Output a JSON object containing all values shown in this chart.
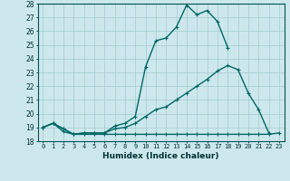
{
  "xlabel": "Humidex (Indice chaleur)",
  "ylabel": "",
  "background_color": "#cde8ec",
  "grid_color": "#a8cfd4",
  "line_color": "#006868",
  "xlim": [
    -0.5,
    23.5
  ],
  "ylim": [
    18,
    28
  ],
  "yticks": [
    18,
    19,
    20,
    21,
    22,
    23,
    24,
    25,
    26,
    27,
    28
  ],
  "xticks": [
    0,
    1,
    2,
    3,
    4,
    5,
    6,
    7,
    8,
    9,
    10,
    11,
    12,
    13,
    14,
    15,
    16,
    17,
    18,
    19,
    20,
    21,
    22,
    23
  ],
  "curve1_x": [
    0,
    1,
    2,
    3,
    4,
    5,
    6,
    7,
    8,
    9,
    10,
    11,
    12,
    13,
    14,
    15,
    16,
    17,
    18,
    19,
    20,
    21,
    22,
    23
  ],
  "curve1_y": [
    19.0,
    19.3,
    18.7,
    18.5,
    18.5,
    18.5,
    18.5,
    18.5,
    18.5,
    18.5,
    18.5,
    18.5,
    18.5,
    18.5,
    18.5,
    18.5,
    18.5,
    18.5,
    18.5,
    18.5,
    18.5,
    18.5,
    18.5,
    18.6
  ],
  "curve2_x": [
    0,
    1,
    2,
    3,
    4,
    5,
    6,
    7,
    8,
    9,
    10,
    11,
    12,
    13,
    14,
    15,
    16,
    17,
    18,
    19,
    20,
    21,
    22,
    23
  ],
  "curve2_y": [
    19.0,
    19.3,
    18.9,
    18.5,
    18.6,
    18.6,
    18.6,
    18.9,
    19.0,
    19.3,
    19.8,
    20.3,
    20.5,
    21.0,
    21.5,
    22.0,
    22.5,
    23.1,
    23.5,
    23.2,
    21.5,
    20.3,
    18.6,
    null
  ],
  "curve3_x": [
    0,
    1,
    2,
    3,
    4,
    5,
    6,
    7,
    8,
    9,
    10,
    11,
    12,
    13,
    14,
    15,
    16,
    17,
    18
  ],
  "curve3_y": [
    19.0,
    19.3,
    18.9,
    18.5,
    18.6,
    18.6,
    18.6,
    19.1,
    19.3,
    19.8,
    23.4,
    25.3,
    25.5,
    26.3,
    27.9,
    27.2,
    27.5,
    26.7,
    24.8
  ],
  "marker": "+",
  "markersize": 3.5,
  "linewidth": 1.0
}
